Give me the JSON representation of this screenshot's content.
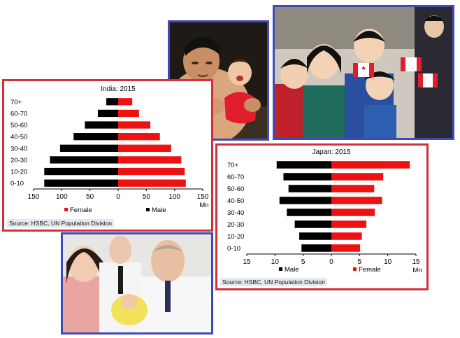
{
  "colors": {
    "male": "#000000",
    "female": "#ee1111",
    "frame_red": "#d32f3a",
    "frame_blue": "#4149b8"
  },
  "photos": {
    "sumo": {
      "icon": "sumo-wrestler-with-crying-baby-photo"
    },
    "kids": {
      "icon": "children-with-canadian-flags-photo"
    },
    "putin": {
      "icon": "man-and-woman-with-newborn-photo"
    }
  },
  "chart_data": [
    {
      "type": "bar",
      "title": "India: 2015",
      "categories": [
        "0-10",
        "10-20",
        "20-30",
        "30-40",
        "40-50",
        "50-60",
        "60-70",
        "70+"
      ],
      "series": [
        {
          "name": "Male",
          "values": [
            131,
            131,
            121,
            103,
            79,
            59,
            36,
            21
          ]
        },
        {
          "name": "Female",
          "values": [
            120,
            118,
            112,
            94,
            74,
            57,
            37,
            25
          ]
        }
      ],
      "x_ticks": [
        "150",
        "100",
        "50",
        "0",
        "50",
        "100",
        "150"
      ],
      "xlim": [
        -150,
        150
      ],
      "unit": "Mn",
      "source": "Source: HSBC, UN Population Division"
    },
    {
      "type": "bar",
      "title": "Japan: 2015",
      "categories": [
        "0-10",
        "10-20",
        "20-30",
        "30-40",
        "40-50",
        "50-60",
        "60-70",
        "70+"
      ],
      "series": [
        {
          "name": "Male",
          "values": [
            5.3,
            5.7,
            6.5,
            7.9,
            9.2,
            7.6,
            8.5,
            9.7
          ]
        },
        {
          "name": "Female",
          "values": [
            5.1,
            5.4,
            6.2,
            7.7,
            9.0,
            7.6,
            9.2,
            13.9
          ]
        }
      ],
      "x_ticks": [
        "15",
        "10",
        "5",
        "0",
        "5",
        "10",
        "15"
      ],
      "xlim": [
        -15,
        15
      ],
      "unit": "Mn",
      "source": "Source: HSBC, UN Population Division"
    }
  ]
}
